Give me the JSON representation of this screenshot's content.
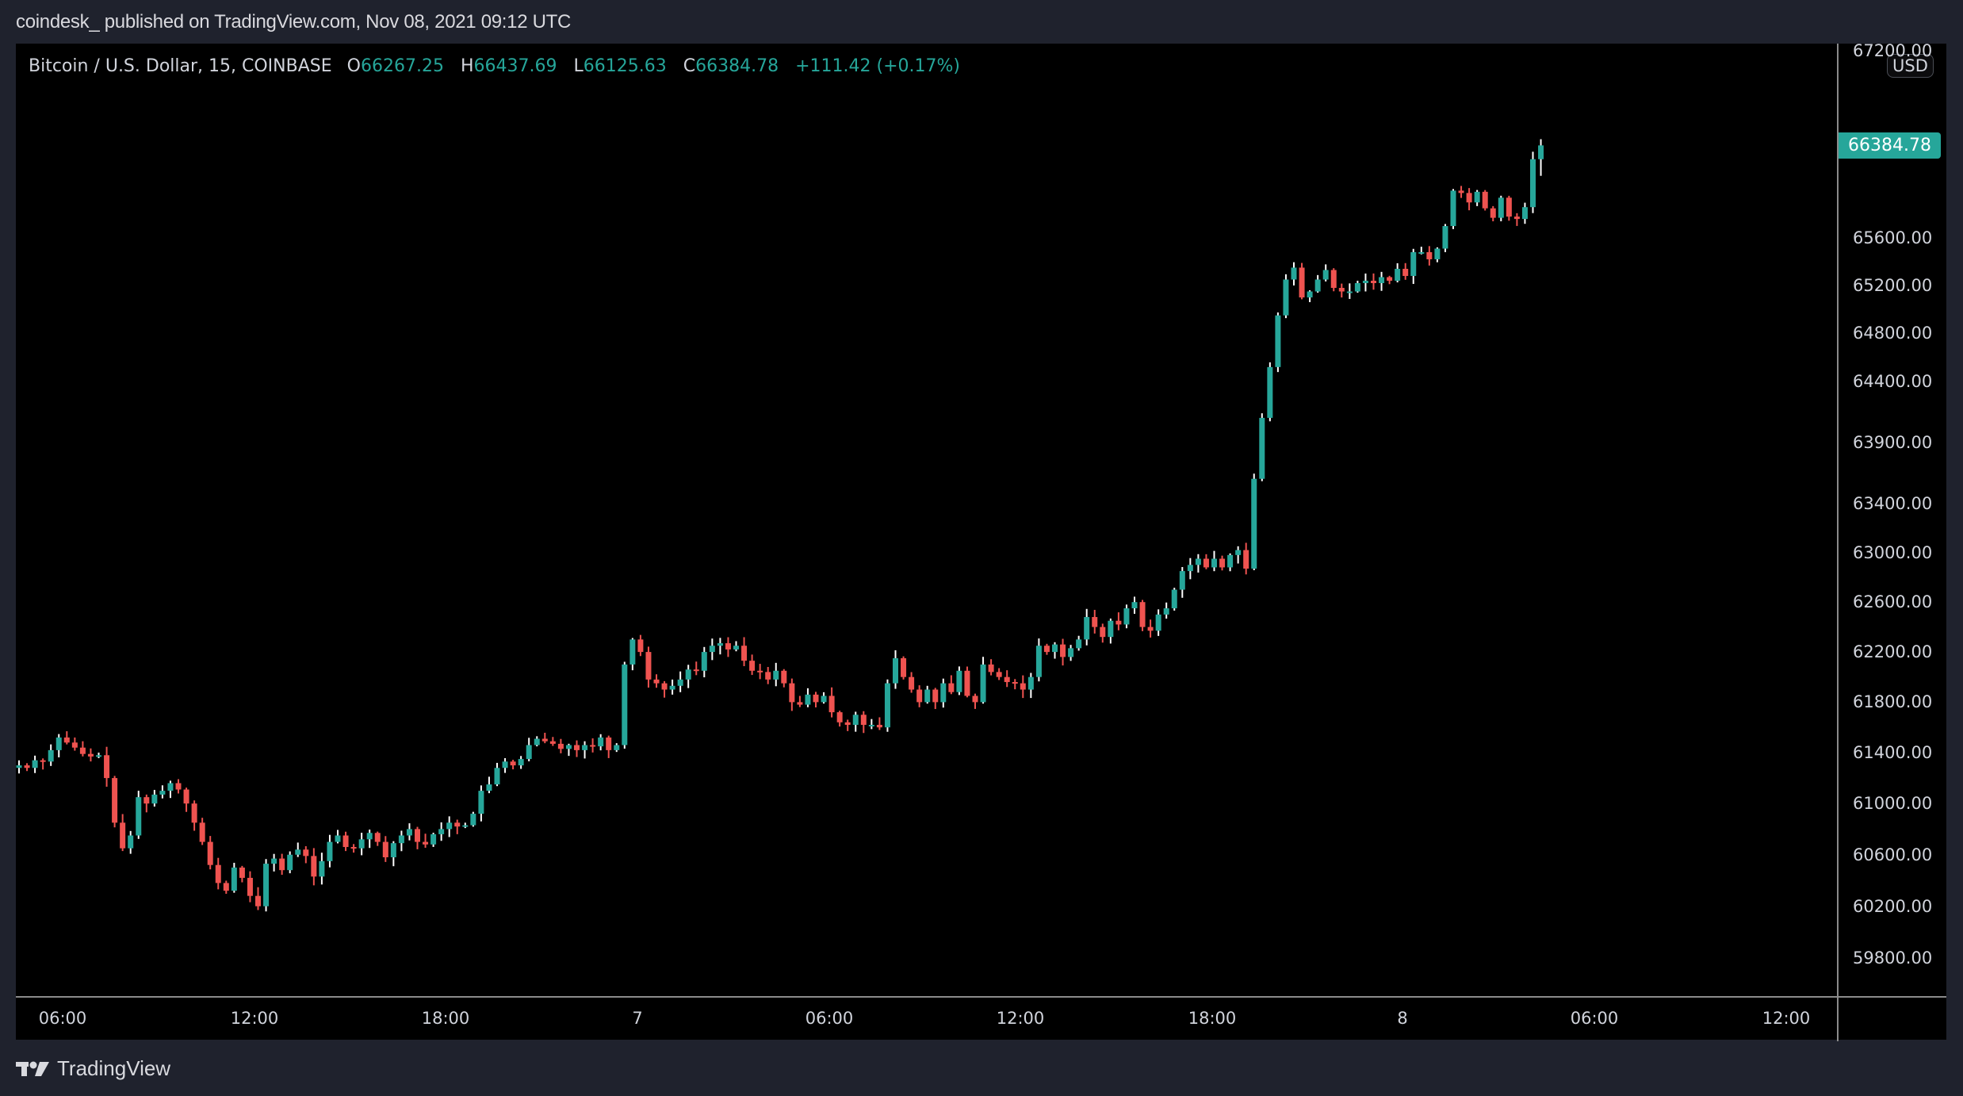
{
  "header": {
    "published_text": "coindesk_ published on TradingView.com, Nov 08, 2021 09:12 UTC"
  },
  "legend": {
    "symbol": "Bitcoin / U.S. Dollar, 15, COINBASE",
    "open_label": "O",
    "open": "66267.25",
    "high_label": "H",
    "high": "66437.69",
    "low_label": "L",
    "low": "66125.63",
    "close_label": "C",
    "close": "66384.78",
    "change": "+111.42 (+0.17%)"
  },
  "price_axis": {
    "currency_badge": "USD",
    "last_price": "66384.78",
    "ticks": [
      "67200.00",
      "65600.00",
      "65200.00",
      "64800.00",
      "64400.00",
      "63900.00",
      "63400.00",
      "63000.00",
      "62600.00",
      "62200.00",
      "61800.00",
      "61400.00",
      "61000.00",
      "60600.00",
      "60200.00",
      "59800.00"
    ]
  },
  "time_axis": {
    "ticks": [
      "06:00",
      "12:00",
      "18:00",
      "7",
      "06:00",
      "12:00",
      "18:00",
      "8",
      "06:00",
      "12:00"
    ]
  },
  "footer": {
    "brand": "TradingView"
  },
  "colors": {
    "up": "#26a69a",
    "down": "#ef5350",
    "wick": "#ffffff",
    "background": "#000000",
    "frame": "#1f222d",
    "axis_line": "#8b8b8b",
    "text": "#d1d4dc"
  },
  "chart_data": {
    "type": "candlestick",
    "title": "Bitcoin / U.S. Dollar, 15, COINBASE",
    "interval": "15m",
    "xlabel": "",
    "ylabel": "USD",
    "y_scale": "log",
    "ylim": [
      59650,
      67250
    ],
    "x_ticks": [
      "06:00",
      "12:00",
      "18:00",
      "7",
      "06:00",
      "12:00",
      "18:00",
      "8",
      "06:00",
      "12:00"
    ],
    "y_ticks": [
      67200,
      65600,
      65200,
      64800,
      64400,
      63900,
      63400,
      63000,
      62600,
      62200,
      61800,
      61400,
      61000,
      60600,
      60200,
      59800
    ],
    "start_time": "Nov 06 04:30",
    "end_time": "Nov 08 09:00",
    "last": {
      "open": 66267.25,
      "high": 66437.69,
      "low": 66125.63,
      "close": 66384.78,
      "change": 111.42,
      "change_pct": 0.17
    },
    "closes": [
      61300,
      61280,
      61340,
      61330,
      61420,
      61520,
      61480,
      61440,
      61390,
      61370,
      61380,
      61200,
      60850,
      60650,
      60750,
      61050,
      61000,
      61070,
      61100,
      61160,
      61110,
      61000,
      60850,
      60700,
      60520,
      60380,
      60320,
      60500,
      60420,
      60280,
      60200,
      60530,
      60570,
      60480,
      60600,
      60640,
      60590,
      60430,
      60550,
      60700,
      60750,
      60660,
      60650,
      60720,
      60770,
      60700,
      60580,
      60690,
      60750,
      60800,
      60700,
      60680,
      60760,
      60800,
      60850,
      60820,
      60830,
      60920,
      61100,
      61150,
      61280,
      61330,
      61300,
      61350,
      61460,
      61510,
      61490,
      61470,
      61430,
      61460,
      61420,
      61460,
      61450,
      61520,
      61420,
      61460,
      62100,
      62300,
      62200,
      61980,
      61950,
      61900,
      61930,
      61980,
      62060,
      62050,
      62200,
      62250,
      62270,
      62220,
      62250,
      62130,
      62050,
      62040,
      61980,
      62050,
      61950,
      61800,
      61780,
      61860,
      61800,
      61850,
      61720,
      61640,
      61620,
      61700,
      61620,
      61620,
      61600,
      61950,
      62150,
      62000,
      61900,
      61800,
      61900,
      61800,
      61950,
      61880,
      62050,
      61850,
      61800,
      62100,
      62040,
      62000,
      61960,
      61950,
      61900,
      62000,
      62250,
      62200,
      62260,
      62160,
      62230,
      62300,
      62480,
      62400,
      62320,
      62450,
      62420,
      62550,
      62600,
      62400,
      62370,
      62500,
      62550,
      62700,
      62850,
      62900,
      62950,
      62880,
      62950,
      62880,
      62980,
      63020,
      62870,
      63600,
      64100,
      64520,
      64950,
      65250,
      65350,
      65100,
      65150,
      65250,
      65330,
      65180,
      65150,
      65150,
      65220,
      65240,
      65220,
      65270,
      65240,
      65340,
      65280,
      65480,
      65480,
      65420,
      65510,
      65700,
      66000,
      65980,
      65900,
      65990,
      65850,
      65770,
      65940,
      65780,
      65760,
      65860,
      66267.25,
      66384.78
    ]
  }
}
